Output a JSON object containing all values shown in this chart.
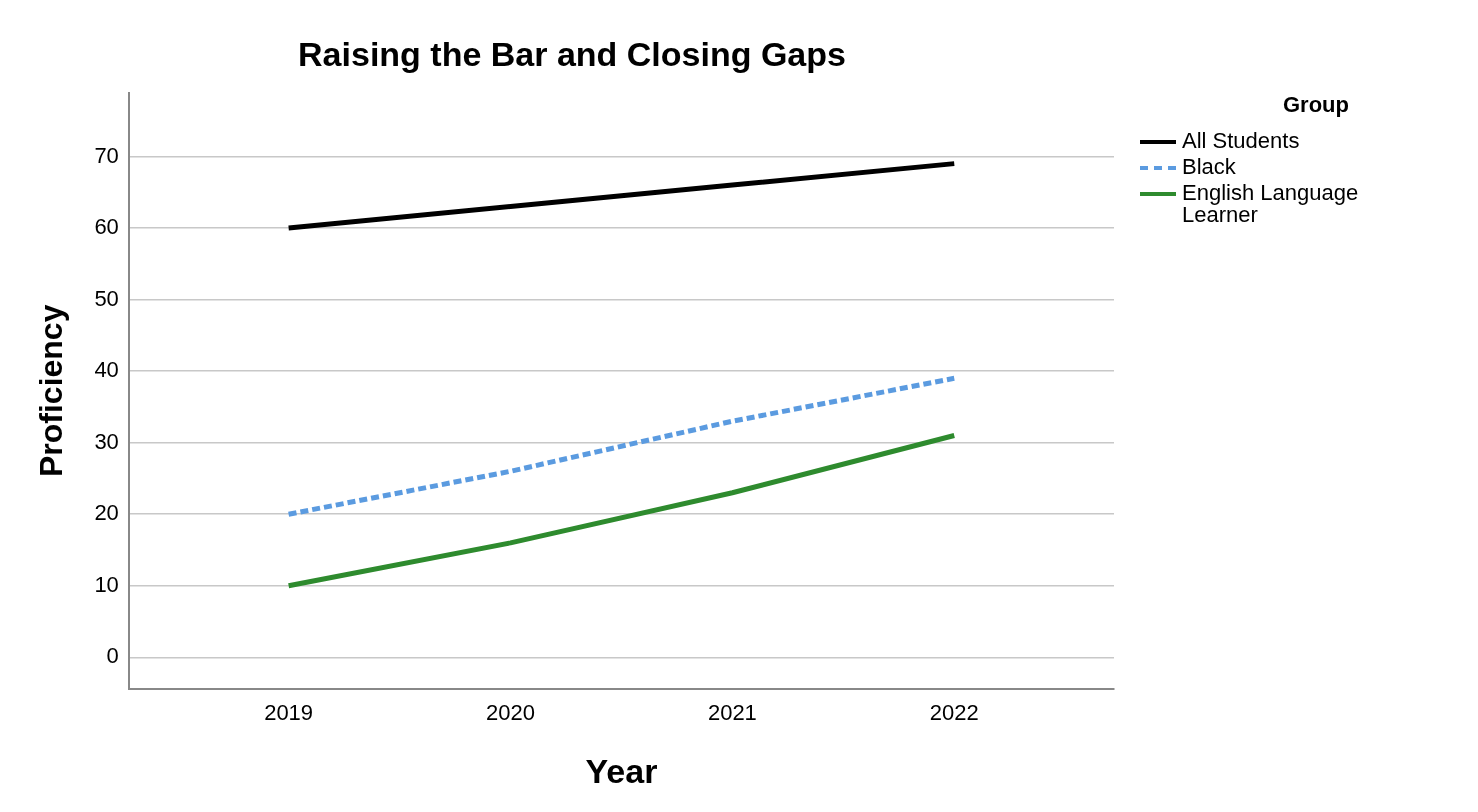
{
  "chart_data": {
    "type": "line",
    "title": "Raising the Bar and Closing Gaps",
    "xlabel": "Year",
    "ylabel": "Proficiency",
    "legend_title": "Group",
    "categories": [
      "2019",
      "2020",
      "2021",
      "2022"
    ],
    "series": [
      {
        "name": "All Students",
        "color": "#000000",
        "values": [
          60,
          63,
          66,
          69
        ]
      },
      {
        "name": "Black",
        "color": "#5b9be0",
        "values": [
          20,
          26,
          33,
          39
        ],
        "line_style": "dashed"
      },
      {
        "name": "English Language Learner",
        "color": "#2e8b2e",
        "values": [
          10,
          16,
          23,
          31
        ]
      }
    ],
    "ylim": [
      -4.4,
      78.9
    ],
    "yticks": [
      0,
      10,
      20,
      30,
      40,
      50,
      60,
      70
    ],
    "grid": "y",
    "legend": "top right",
    "marker": "none",
    "line_style": "solid"
  }
}
